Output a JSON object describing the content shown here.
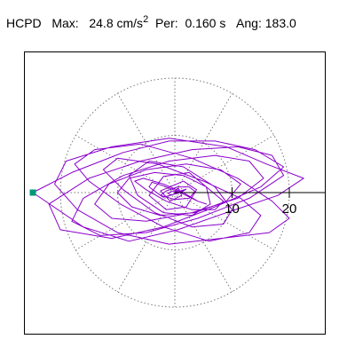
{
  "header": {
    "station": "HCPD",
    "max_label": "Max:",
    "max_value": "24.8",
    "max_unit": "cm/s",
    "max_unit_exp": "2",
    "per_label": "Per:",
    "per_value": "0.160 s",
    "ang_label": "Ang:",
    "ang_value": "183.0"
  },
  "colors": {
    "trace": "#8B00CC",
    "marker": "#009977",
    "grid": "#777777",
    "frame": "#000000"
  },
  "chart_data": {
    "type": "scatter",
    "title": "HCPD  Max: 24.8 cm/s² Per: 0.160 s Ang: 183.0",
    "xlabel": "",
    "ylabel": "",
    "polar_grid": true,
    "radial_rings": [
      10,
      20
    ],
    "radial_tick_labels": [
      "10",
      "20"
    ],
    "spoke_count": 12,
    "xlim": [
      -27,
      27
    ],
    "ylim": [
      -25.5,
      25.5
    ],
    "max_amplitude": 24.8,
    "angle_deg": 183.0,
    "direction_marker": {
      "x": -24.8,
      "y": 0
    },
    "trace": {
      "name": "",
      "x": [
        0.0,
        0.6,
        1.2,
        -0.8,
        -2.5,
        1.5,
        3.8,
        2.0,
        -1.5,
        -4.5,
        -2.0,
        2.5,
        5.5,
        6.2,
        3.0,
        -2.0,
        -6.5,
        -8.0,
        -4.5,
        1.5,
        7.0,
        10.0,
        8.5,
        3.0,
        -3.5,
        -9.0,
        -12.5,
        -10.0,
        -3.0,
        5.0,
        11.5,
        15.0,
        13.0,
        6.0,
        -2.0,
        -9.5,
        -15.0,
        -17.5,
        -14.0,
        -6.0,
        3.0,
        11.0,
        17.0,
        20.0,
        16.5,
        8.0,
        -1.0,
        -10.0,
        -17.0,
        -21.0,
        -19.0,
        -11.0,
        -1.0,
        9.0,
        16.0,
        22.5,
        18.0,
        9.0,
        0.5,
        -8.0,
        -16.0,
        -24.8,
        -18.0,
        -9.0,
        -1.0,
        7.0,
        14.0,
        19.0,
        15.0,
        7.0,
        -2.0,
        -11.0,
        -20.0,
        -22.0,
        -15.0,
        -6.0,
        3.0,
        11.0,
        17.0,
        19.0,
        13.0,
        4.0,
        -5.0,
        -13.0,
        -18.0,
        -16.0,
        -9.0,
        -1.0,
        7.0,
        13.0,
        15.5,
        11.0,
        3.0,
        -5.0,
        -11.0,
        -14.0,
        -11.5,
        -5.0,
        2.0,
        8.0,
        11.5,
        9.0,
        3.5,
        -2.5,
        -7.5,
        -10.0,
        -8.0,
        -3.5,
        1.5,
        5.5,
        8.5,
        7.0,
        3.0,
        -1.5,
        -5.0,
        -7.0,
        -5.5,
        -2.0,
        1.5,
        4.0,
        5.5,
        4.0,
        1.0,
        -2.0,
        -4.0,
        -4.5,
        -2.5,
        0.0,
        2.5,
        3.5,
        2.5,
        0.5,
        -1.5,
        -2.5,
        -2.0,
        -0.5,
        1.0,
        2.0,
        1.5,
        0.3,
        -0.8,
        -1.2,
        -0.6,
        0.2,
        0.6,
        0.3,
        0.0
      ],
      "y": [
        0.0,
        0.8,
        -0.5,
        -1.5,
        0.3,
        2.0,
        0.5,
        -2.5,
        -3.0,
        -0.5,
        2.8,
        3.5,
        1.0,
        -2.0,
        -4.0,
        -3.5,
        -0.5,
        3.0,
        5.5,
        4.5,
        1.0,
        -3.0,
        -5.5,
        -6.0,
        -3.5,
        0.5,
        4.0,
        6.0,
        5.0,
        2.0,
        -1.0,
        -4.0,
        -7.0,
        -8.5,
        -6.0,
        -2.0,
        2.0,
        5.0,
        7.5,
        8.5,
        6.0,
        2.5,
        -1.5,
        -4.5,
        -7.0,
        -8.0,
        -9.0,
        -7.0,
        -3.0,
        1.5,
        5.5,
        8.0,
        9.5,
        8.0,
        5.0,
        2.5,
        -0.5,
        -3.5,
        -6.5,
        -8.5,
        -6.0,
        0.0,
        3.5,
        7.0,
        9.0,
        9.0,
        7.5,
        4.5,
        1.0,
        -2.5,
        -6.0,
        -8.0,
        -6.5,
        -2.0,
        2.5,
        5.5,
        7.5,
        8.0,
        6.5,
        3.0,
        -1.0,
        -4.5,
        -7.0,
        -7.5,
        -5.0,
        -1.0,
        3.0,
        5.5,
        6.5,
        5.5,
        2.5,
        -1.0,
        -3.5,
        -5.0,
        -4.5,
        -2.0,
        1.5,
        4.0,
        5.0,
        4.0,
        1.5,
        -1.5,
        -3.5,
        -4.0,
        -2.5,
        0.0,
        2.5,
        3.5,
        3.0,
        1.0,
        -1.5,
        -3.0,
        -3.0,
        -1.5,
        0.5,
        2.0,
        2.5,
        1.5,
        0.0,
        -1.5,
        -2.0,
        -1.5,
        0.0,
        1.2,
        1.8,
        1.0,
        -0.5,
        -1.2,
        -1.0,
        0.2,
        1.0,
        1.0,
        0.3,
        -0.5,
        -0.8,
        -0.4,
        0.3,
        0.6,
        0.3,
        -0.2,
        -0.4,
        -0.1,
        0.2,
        0.2,
        0.0,
        -0.1,
        0.0
      ]
    }
  }
}
